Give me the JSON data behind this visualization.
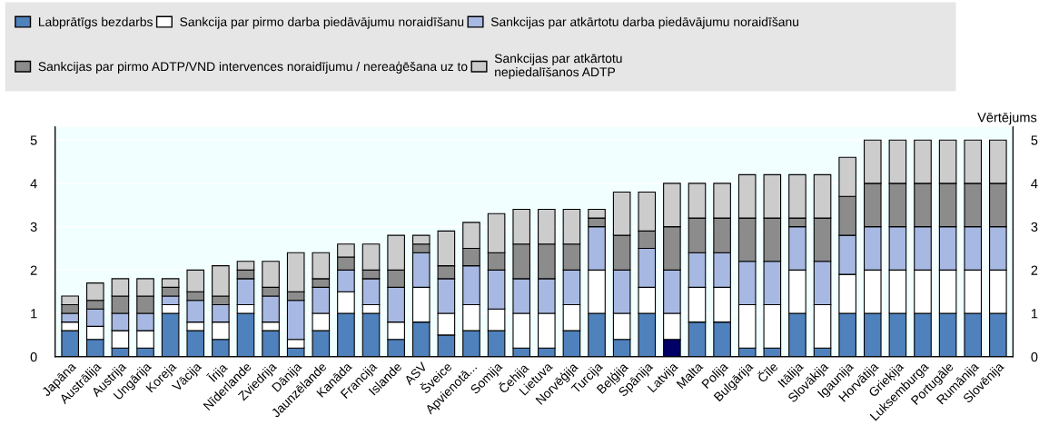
{
  "chart_data": {
    "type": "bar",
    "stacked": true,
    "y2label": "Vērtējums",
    "categories": [
      "Japāna",
      "Austrālija",
      "Austrija",
      "Ungārija",
      "Koreja",
      "Vācija",
      "Īrija",
      "Nīderlande",
      "Zviedrija",
      "Dānija",
      "Jaunzēlande",
      "Kanāda",
      "Francija",
      "Islande",
      "ASV",
      "Šveice",
      "Apvienotā...",
      "Somija",
      "Čehija",
      "Lietuva",
      "Norvēģija",
      "Turcija",
      "Beļģija",
      "Spānija",
      "Latvija",
      "Malta",
      "Polija",
      "Bulgārija",
      "Čīle",
      "Itālija",
      "Slovākija",
      "Igaunija",
      "Horvātija",
      "Grieķija",
      "Luksemburga",
      "Portugāle",
      "Rumānija",
      "Slovēnija"
    ],
    "series": [
      {
        "name": "Labprātīgs bezdarbs",
        "color": "#4f81bd",
        "colors": [
          "#4f81bd",
          "#4f81bd",
          "#4f81bd",
          "#4f81bd",
          "#4f81bd",
          "#4f81bd",
          "#4f81bd",
          "#4f81bd",
          "#4f81bd",
          "#4f81bd",
          "#4f81bd",
          "#4f81bd",
          "#4f81bd",
          "#4f81bd",
          "#4f81bd",
          "#4f81bd",
          "#4f81bd",
          "#4f81bd",
          "#4f81bd",
          "#4f81bd",
          "#4f81bd",
          "#4f81bd",
          "#4f81bd",
          "#4f81bd",
          "#000066",
          "#4f81bd",
          "#4f81bd",
          "#4f81bd",
          "#4f81bd",
          "#4f81bd",
          "#4f81bd",
          "#4f81bd",
          "#4f81bd",
          "#4f81bd",
          "#4f81bd",
          "#4f81bd",
          "#4f81bd",
          "#4f81bd"
        ],
        "values": [
          0.6,
          0.4,
          0.2,
          0.2,
          1.0,
          0.6,
          0.4,
          1.0,
          0.6,
          0.2,
          0.6,
          1.0,
          1.0,
          0.4,
          0.8,
          0.5,
          0.6,
          0.6,
          0.2,
          0.2,
          0.6,
          1.0,
          0.4,
          1.0,
          0.4,
          0.8,
          0.8,
          0.2,
          0.2,
          1.0,
          0.2,
          1.0,
          1.0,
          1.0,
          1.0,
          1.0,
          1.0,
          1.0
        ]
      },
      {
        "name": "Sankcija par pirmo darba piedāvājumu noraidīšanu",
        "color": "#ffffff",
        "values": [
          0.2,
          0.3,
          0.4,
          0.4,
          0.2,
          0.2,
          0.4,
          0.2,
          0.2,
          0.2,
          0.4,
          0.5,
          0.2,
          0.4,
          0.8,
          0.5,
          0.6,
          0.5,
          0.8,
          0.8,
          0.6,
          1.0,
          0.6,
          0.6,
          0.6,
          0.8,
          0.8,
          1.0,
          1.0,
          1.0,
          1.0,
          0.9,
          1.0,
          1.0,
          1.0,
          1.0,
          1.0,
          1.0
        ]
      },
      {
        "name": "Sankcijas par atkārtotu darba piedāvājumu noraidīšanu",
        "color": "#a7b9e3",
        "values": [
          0.2,
          0.4,
          0.4,
          0.4,
          0.2,
          0.5,
          0.4,
          0.6,
          0.6,
          0.9,
          0.6,
          0.5,
          0.6,
          0.8,
          0.8,
          0.8,
          0.9,
          0.9,
          0.8,
          0.8,
          0.8,
          1.0,
          1.0,
          0.9,
          1.0,
          0.8,
          0.8,
          1.0,
          1.0,
          1.0,
          1.0,
          0.9,
          1.0,
          1.0,
          1.0,
          1.0,
          1.0,
          1.0
        ]
      },
      {
        "name": "Sankcijas par pirmo ADTP/VND intervences noraidījumu / nereaģēšana uz to",
        "color": "#8c8c8c",
        "values": [
          0.2,
          0.2,
          0.4,
          0.4,
          0.2,
          0.2,
          0.2,
          0.2,
          0.2,
          0.2,
          0.2,
          0.3,
          0.2,
          0.4,
          0.2,
          0.3,
          0.4,
          0.4,
          0.8,
          0.8,
          0.6,
          0.2,
          0.8,
          0.4,
          1.0,
          0.8,
          0.8,
          1.0,
          1.0,
          0.2,
          1.0,
          0.9,
          1.0,
          1.0,
          1.0,
          1.0,
          1.0,
          1.0
        ]
      },
      {
        "name": "Sankcijas par atkārtotu\nnepiedalīšanos ADTP",
        "color": "#cccccc",
        "values": [
          0.2,
          0.4,
          0.4,
          0.4,
          0.2,
          0.5,
          0.7,
          0.2,
          0.6,
          0.9,
          0.6,
          0.3,
          0.6,
          0.8,
          0.2,
          0.8,
          0.6,
          0.9,
          0.8,
          0.8,
          0.8,
          0.2,
          1.0,
          0.9,
          1.0,
          0.8,
          0.8,
          1.0,
          1.0,
          1.0,
          1.0,
          0.9,
          1.0,
          1.0,
          1.0,
          1.0,
          1.0,
          1.0
        ]
      }
    ],
    "ylim": [
      0,
      5.3
    ],
    "yticks": [
      0,
      1,
      2,
      3,
      4,
      5
    ],
    "y2lim": [
      0,
      5.3
    ],
    "y2ticks": [
      0,
      1,
      2,
      3,
      4,
      5
    ],
    "grid": "y",
    "legend": "top"
  }
}
